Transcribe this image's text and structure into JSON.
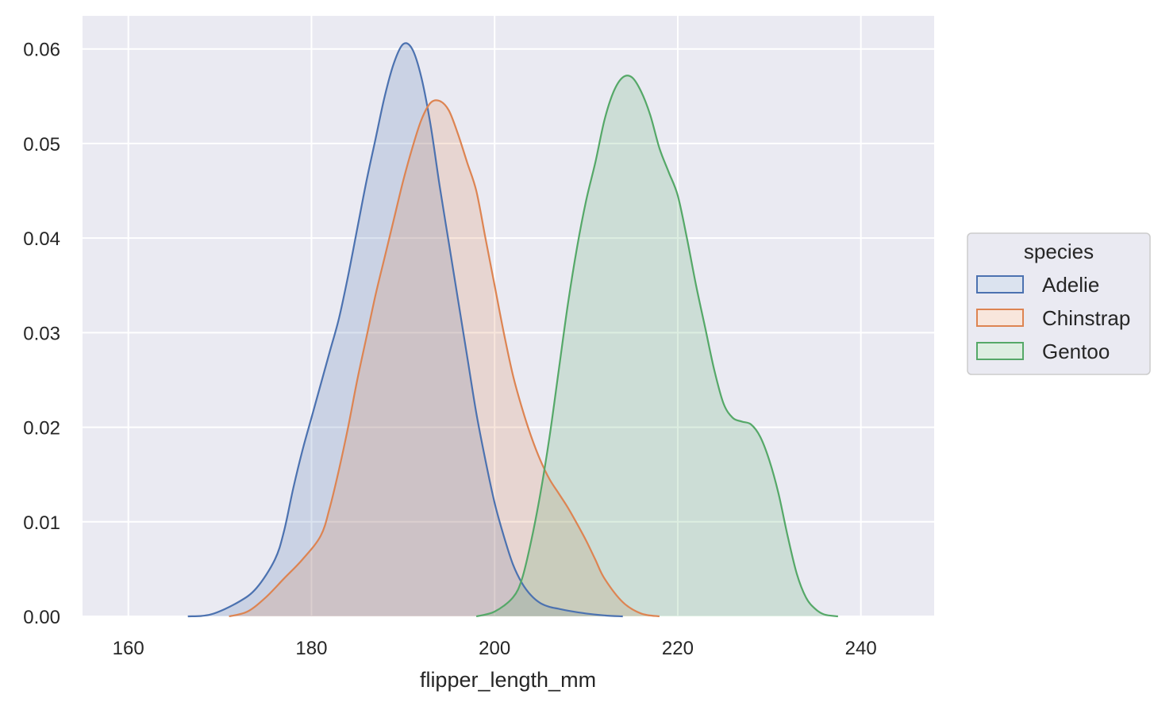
{
  "chart_data": {
    "type": "area",
    "title": "",
    "xlabel": "flipper_length_mm",
    "ylabel": "",
    "xlim": [
      155,
      248
    ],
    "ylim": [
      0,
      0.0635
    ],
    "xticks": [
      160,
      180,
      200,
      220,
      240
    ],
    "xtick_labels": [
      "160",
      "180",
      "200",
      "220",
      "240"
    ],
    "yticks": [
      0.0,
      0.01,
      0.02,
      0.03,
      0.04,
      0.05,
      0.06
    ],
    "ytick_labels": [
      "0.00",
      "0.01",
      "0.02",
      "0.03",
      "0.04",
      "0.05",
      "0.06"
    ],
    "grid": true,
    "legend": {
      "title": "species",
      "position": "right"
    },
    "series": [
      {
        "name": "Adelie",
        "color": "#4c72b0",
        "x": [
          166.5,
          169,
          172,
          174,
          176,
          177,
          178,
          179,
          180,
          181,
          182,
          183,
          184,
          185,
          186,
          187,
          188,
          189,
          190,
          191,
          192,
          193,
          194,
          195,
          196,
          197,
          198,
          199,
          200,
          201,
          202,
          203,
          204,
          205,
          206,
          207,
          208,
          210,
          212,
          214
        ],
        "y": [
          0,
          0.0002,
          0.0015,
          0.003,
          0.006,
          0.009,
          0.0135,
          0.0175,
          0.021,
          0.0245,
          0.028,
          0.0315,
          0.036,
          0.041,
          0.046,
          0.0505,
          0.055,
          0.0585,
          0.0605,
          0.06,
          0.057,
          0.052,
          0.0455,
          0.0395,
          0.0335,
          0.0275,
          0.0215,
          0.0165,
          0.012,
          0.0085,
          0.0055,
          0.0035,
          0.0022,
          0.0014,
          0.001,
          0.0008,
          0.0006,
          0.0003,
          0.0001,
          0
        ]
      },
      {
        "name": "Chinstrap",
        "color": "#dd8452",
        "x": [
          171,
          173,
          175,
          177,
          179,
          181,
          182,
          183,
          184,
          185,
          186,
          187,
          188,
          189,
          190,
          191,
          192,
          193,
          194,
          195,
          196,
          197,
          198,
          199,
          200,
          201,
          202,
          203,
          204,
          205,
          206,
          207,
          208,
          209,
          210,
          211,
          212,
          214,
          216,
          218
        ],
        "y": [
          0,
          0.0005,
          0.002,
          0.004,
          0.006,
          0.0085,
          0.0115,
          0.0155,
          0.02,
          0.025,
          0.0295,
          0.034,
          0.038,
          0.042,
          0.046,
          0.0495,
          0.0525,
          0.0543,
          0.0545,
          0.0535,
          0.051,
          0.048,
          0.045,
          0.04,
          0.035,
          0.03,
          0.0255,
          0.022,
          0.019,
          0.0165,
          0.0145,
          0.013,
          0.0115,
          0.0098,
          0.008,
          0.006,
          0.004,
          0.0015,
          0.0003,
          0
        ]
      },
      {
        "name": "Gentoo",
        "color": "#55a868",
        "x": [
          198,
          200,
          202,
          203,
          204,
          205,
          206,
          207,
          208,
          209,
          210,
          211,
          212,
          213,
          214,
          215,
          216,
          217,
          218,
          219,
          220,
          221,
          222,
          223,
          224,
          225,
          226,
          227,
          228,
          229,
          230,
          231,
          232,
          233,
          234,
          235,
          236,
          237.5
        ],
        "y": [
          0,
          0.0005,
          0.002,
          0.004,
          0.008,
          0.013,
          0.019,
          0.026,
          0.033,
          0.039,
          0.044,
          0.048,
          0.0525,
          0.0555,
          0.057,
          0.057,
          0.0555,
          0.053,
          0.0495,
          0.047,
          0.0445,
          0.04,
          0.035,
          0.0305,
          0.026,
          0.0225,
          0.021,
          0.0206,
          0.0203,
          0.019,
          0.0165,
          0.013,
          0.0085,
          0.0045,
          0.002,
          0.0008,
          0.0002,
          0
        ]
      }
    ]
  }
}
